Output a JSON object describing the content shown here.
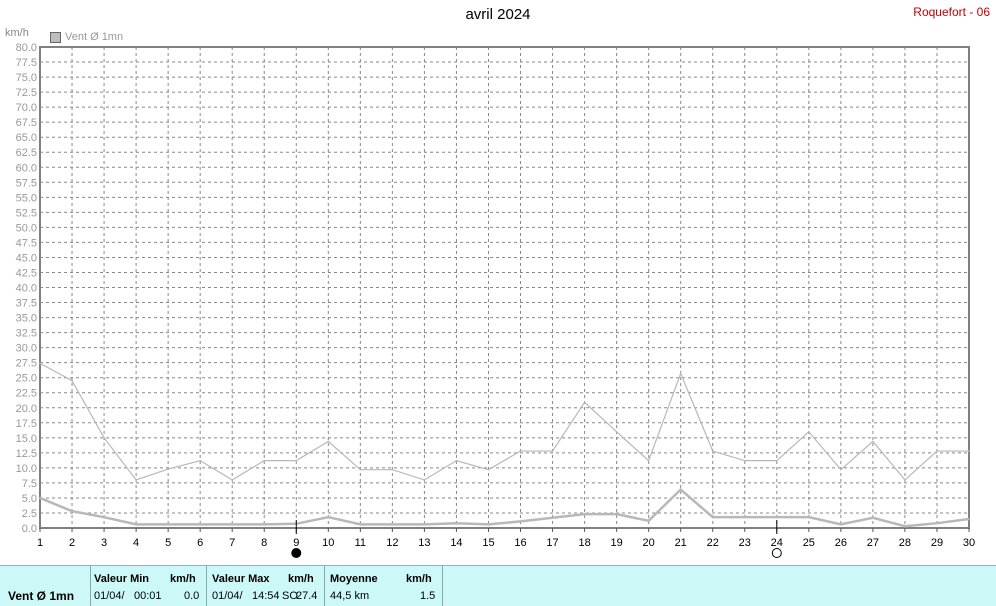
{
  "header": {
    "title": "avril 2024",
    "station": "Roquefort - 06",
    "legend_label": "Vent Ø 1mn",
    "y_unit": "km/h"
  },
  "chart_data": {
    "type": "line",
    "title": "avril 2024",
    "ylabel": "km/h",
    "ylim": [
      0,
      80
    ],
    "xlim": [
      1,
      30
    ],
    "ytick_step": 2.5,
    "grid": true,
    "legend": "top-left",
    "x": [
      1,
      2,
      3,
      4,
      5,
      6,
      7,
      8,
      9,
      10,
      11,
      12,
      13,
      14,
      15,
      16,
      17,
      18,
      19,
      20,
      21,
      22,
      23,
      24,
      25,
      26,
      27,
      28,
      29,
      30
    ],
    "series": [
      {
        "name": "Vent Ø 1mn",
        "role": "max",
        "color": "#b8b8b8",
        "values": [
          27.4,
          24.5,
          15.0,
          8.0,
          9.8,
          11.2,
          8.0,
          11.2,
          11.2,
          14.4,
          9.7,
          9.7,
          8.0,
          11.2,
          9.7,
          12.8,
          12.8,
          20.9,
          16.0,
          11.2,
          25.7,
          12.8,
          11.2,
          11.2,
          16.0,
          9.7,
          14.4,
          8.0,
          12.8,
          12.8
        ]
      },
      {
        "name": "Vent Ø 1mn",
        "role": "mean",
        "color": "#b8b8b8",
        "values": [
          5.0,
          2.8,
          1.8,
          0.6,
          0.6,
          0.6,
          0.6,
          0.6,
          0.7,
          1.8,
          0.6,
          0.6,
          0.6,
          0.8,
          0.6,
          1.1,
          1.7,
          2.3,
          2.3,
          1.2,
          6.4,
          1.8,
          1.8,
          1.8,
          1.8,
          0.6,
          1.7,
          0.3,
          0.8,
          1.5
        ]
      }
    ],
    "moon_markers": [
      {
        "day": 9,
        "phase": "new"
      },
      {
        "day": 24,
        "phase": "full"
      }
    ]
  },
  "footer": {
    "series_name": "Vent Ø 1mn",
    "min_header": "Valeur Min",
    "min_unit": "km/h",
    "min_date": "01/04/",
    "min_time": "00:01",
    "min_value": "0.0",
    "max_header": "Valeur Max",
    "max_unit": "km/h",
    "max_date": "01/04/",
    "max_time": "14:54",
    "max_dir": "SO",
    "max_value": "27.4",
    "mean_header": "Moyenne",
    "mean_unit": "km/h",
    "mean_distance": "44,5 km",
    "mean_value": "1.5"
  }
}
